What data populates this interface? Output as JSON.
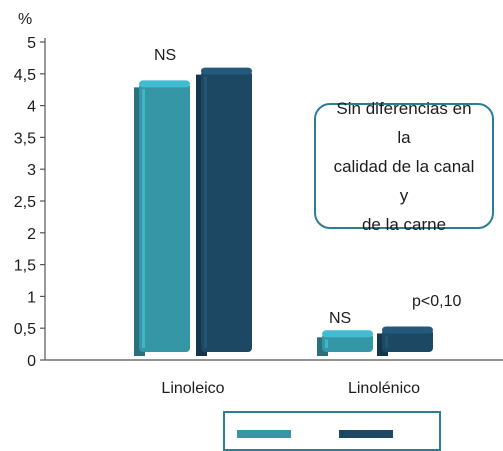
{
  "chart_data": {
    "type": "bar",
    "unit_label": "%",
    "categories": [
      "Linoleico",
      "Linolénico"
    ],
    "series": [
      {
        "values": [
          4.35,
          0.42
        ],
        "color": "#3596a6"
      },
      {
        "values": [
          4.55,
          0.48
        ],
        "color": "#1c4863"
      }
    ],
    "ylim": [
      0,
      5
    ],
    "yticks": [
      "0",
      "0,5",
      "1",
      "1,5",
      "2",
      "2,5",
      "3",
      "3,5",
      "4",
      "4,5",
      "5"
    ],
    "annotations": {
      "linoleico_significance": "NS",
      "linolenico_significance": "NS",
      "linolenico_pvalue": "p<0,10"
    },
    "grid": false,
    "legend": "bottom"
  },
  "callout": {
    "text": "Sin diferencias en la\ncalidad de la canal y\nde la carne"
  }
}
